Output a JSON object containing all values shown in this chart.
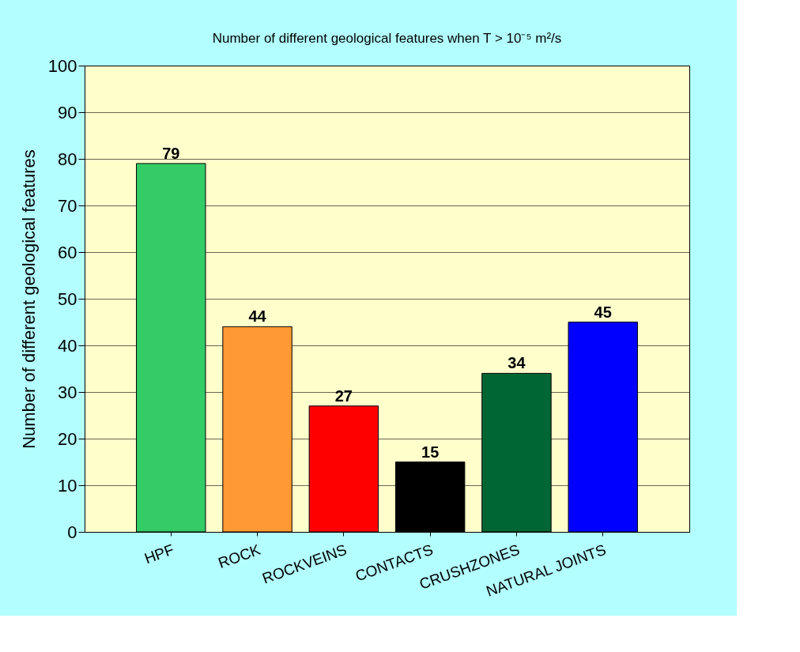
{
  "chart_data": {
    "type": "bar",
    "title": "Number of different geological features when T > 10⁻⁵ m²/s",
    "ylabel": "Number of different geological features",
    "categories": [
      "HPF",
      "ROCK",
      "ROCKVEINS",
      "CONTACTS",
      "CRUSHZONES",
      "NATURAL JOINTS"
    ],
    "values": [
      79,
      44,
      27,
      15,
      34,
      45
    ],
    "colors": [
      "#33cc66",
      "#ff9933",
      "#ff0000",
      "#000000",
      "#006633",
      "#0000ff"
    ],
    "ylim": [
      0,
      100
    ],
    "yticks": [
      0,
      10,
      20,
      30,
      40,
      50,
      60,
      70,
      80,
      90,
      100
    ],
    "grid": "y",
    "data_labels": true,
    "legend": false
  }
}
